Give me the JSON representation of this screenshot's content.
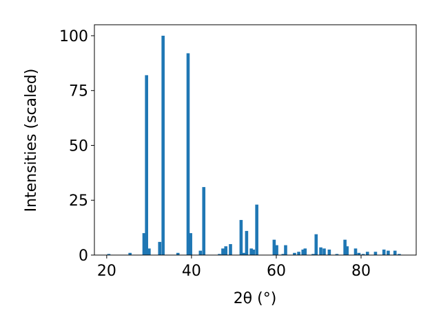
{
  "chart_data": {
    "type": "bar",
    "xlabel": "2θ (°)",
    "ylabel": "Intensities (scaled)",
    "color": "#1f77b4",
    "x": [
      20.5,
      25.5,
      28.8,
      29.4,
      30.0,
      32.5,
      33.3,
      36.8,
      39.2,
      39.8,
      42.1,
      42.9,
      46.6,
      47.4,
      48.1,
      49.2,
      51.7,
      52.3,
      53.0,
      54.1,
      54.6,
      55.4,
      59.5,
      60.1,
      61.6,
      62.2,
      64.3,
      65.3,
      66.3,
      66.8,
      68.7,
      69.4,
      70.5,
      71.3,
      72.5,
      74.3,
      76.2,
      76.7,
      78.7,
      79.5,
      80.5,
      81.5,
      83.4,
      85.4,
      86.4,
      88.0,
      89.0
    ],
    "values": [
      0.5,
      1,
      10,
      82,
      3,
      6,
      100,
      1,
      92,
      10,
      2,
      31,
      0.5,
      3,
      4,
      5,
      16,
      1,
      11,
      3,
      2.5,
      23,
      7,
      4.5,
      0.5,
      4.5,
      1,
      1.5,
      2.5,
      3,
      0.5,
      9.5,
      3.5,
      3,
      2.5,
      0.5,
      7,
      4,
      3,
      1,
      0.5,
      1.5,
      1.5,
      2.5,
      2,
      2,
      0.5
    ],
    "xlim": [
      17.1,
      93.0
    ],
    "xticks": [
      20,
      40,
      60,
      80
    ],
    "ylim": [
      0,
      105
    ],
    "yticks": [
      0,
      25,
      50,
      75,
      100
    ]
  }
}
